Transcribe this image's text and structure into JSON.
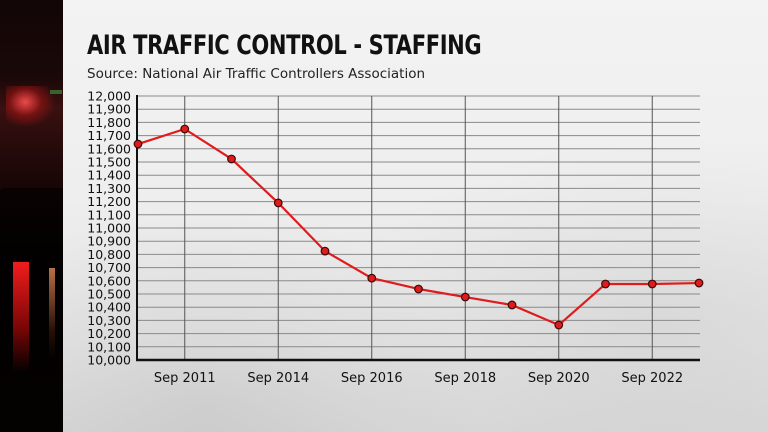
{
  "header": {
    "title": "AIR TRAFFIC CONTROL - STAFFING",
    "subtitle": "Source: National Air Traffic Controllers Association"
  },
  "colors": {
    "line": "#e01b1b",
    "marker_fill": "#e01b1b",
    "marker_stroke": "#3a0a0a",
    "grid": "#8a8a8a",
    "axis": "#111111"
  },
  "chart_data": {
    "type": "line",
    "title": "AIR TRAFFIC CONTROL - STAFFING",
    "subtitle": "Source: National Air Traffic Controllers Association",
    "xlabel": "",
    "ylabel": "",
    "ylim": [
      10000,
      12000
    ],
    "y_ticks": [
      10000,
      10100,
      10200,
      10300,
      10400,
      10500,
      10600,
      10700,
      10800,
      10900,
      11000,
      11100,
      11200,
      11300,
      11400,
      11500,
      11600,
      11700,
      11800,
      11900,
      12000
    ],
    "y_tick_labels": [
      "10,000",
      "10,100",
      "10,200",
      "10,300",
      "10,400",
      "10,500",
      "10,600",
      "10,700",
      "10,800",
      "10,900",
      "11,000",
      "11,100",
      "11,200",
      "11,300",
      "11,400",
      "11,500",
      "11,600",
      "11,700",
      "11,800",
      "11,900",
      "12,000"
    ],
    "x_tick_labels": [
      {
        "label": "Sep 2011",
        "index": 1
      },
      {
        "label": "Sep 2014",
        "index": 3
      },
      {
        "label": "Sep 2016",
        "index": 5
      },
      {
        "label": "Sep 2018",
        "index": 7
      },
      {
        "label": "Sep 2020",
        "index": 9
      },
      {
        "label": "Sep 2022",
        "index": 11
      }
    ],
    "grid": true,
    "legend": "none",
    "series": [
      {
        "name": "Staffing",
        "values": [
          11636,
          11750,
          11523,
          11190,
          10825,
          10620,
          10538,
          10477,
          10417,
          10265,
          10576,
          10576,
          10583
        ]
      }
    ]
  }
}
